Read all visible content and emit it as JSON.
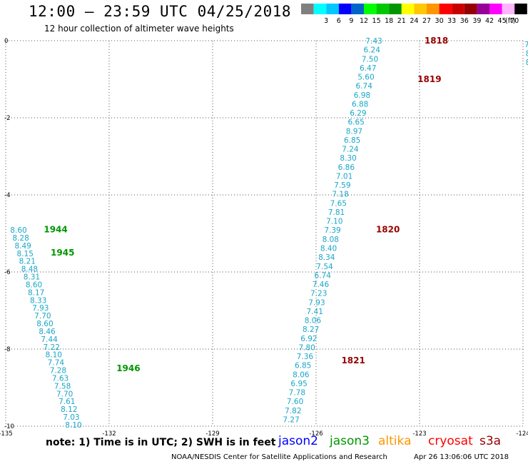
{
  "header": {
    "title": "12:00 – 23:59 UTC 04/25/2018",
    "subtitle": "12 hour collection of altimeter wave heights"
  },
  "legend": {
    "unit": "(ft)",
    "bins": [
      {
        "label": "",
        "color": "#808080"
      },
      {
        "label": "3",
        "color": "#00ffff"
      },
      {
        "label": "6",
        "color": "#00c8ff"
      },
      {
        "label": "9",
        "color": "#0000ff"
      },
      {
        "label": "12",
        "color": "#0064c8"
      },
      {
        "label": "15",
        "color": "#00ff00"
      },
      {
        "label": "18",
        "color": "#00c800"
      },
      {
        "label": "21",
        "color": "#009600"
      },
      {
        "label": "24",
        "color": "#ffff00"
      },
      {
        "label": "27",
        "color": "#ffc800"
      },
      {
        "label": "30",
        "color": "#ff9600"
      },
      {
        "label": "33",
        "color": "#ff0000"
      },
      {
        "label": "36",
        "color": "#c80000"
      },
      {
        "label": "39",
        "color": "#960000"
      },
      {
        "label": "42",
        "color": "#960096"
      },
      {
        "label": "45",
        "color": "#ff00ff"
      },
      {
        "label": "70",
        "color": "#ffb4ff"
      },
      {
        "label": "",
        "color": "#000000"
      }
    ]
  },
  "footer": {
    "note": "note: 1) Time is in UTC; 2) SWH is in feet",
    "satellites": [
      {
        "name": "jason2",
        "color": "#0000ff"
      },
      {
        "name": "jason3",
        "color": "#009600"
      },
      {
        "name": "altika",
        "color": "#ff9600"
      },
      {
        "name": "cryosat",
        "color": "#ff0000"
      },
      {
        "name": "s3a",
        "color": "#960000"
      }
    ],
    "credit": "NOAA/NESDIS Center for Satellite Applications and Research",
    "timestamp": "Apr 26 13:06:06 UTC 2018"
  },
  "chart_data": {
    "type": "scatter",
    "xlim": [
      -135,
      -124
    ],
    "ylim": [
      -10,
      0
    ],
    "xticks": [
      "-135",
      "-132",
      "-129",
      "-126",
      "-123",
      "-124"
    ],
    "yticks": [
      "0",
      "-2",
      "-4",
      "-6",
      "-8",
      "-10"
    ],
    "grid": true,
    "value_color": "#19a6c8",
    "track_a": {
      "values": [
        "7.43",
        "6.24",
        "7.50",
        "6.47",
        "5.60",
        "6.74",
        "6.98",
        "6.88",
        "6.29",
        "6.65",
        "8.97",
        "6.85",
        "7.24",
        "8.30",
        "6.86",
        "7.01",
        "7.59",
        "7.18",
        "7.65",
        "7.81",
        "7.10",
        "7.39",
        "8.08",
        "8.40",
        "8.34",
        "7.54",
        "6.74",
        "7.46",
        "7.23",
        "7.93",
        "7.41",
        "8.06",
        "8.27",
        "6.92",
        "7.80",
        "7.36",
        "6.85",
        "8.06",
        "6.95",
        "7.78",
        "7.60",
        "7.82",
        "7.27"
      ],
      "time_labels": [
        {
          "text": "1818",
          "lon": -122.9,
          "lat": 0.0,
          "color": "#960000"
        },
        {
          "text": "1819",
          "lon": -123.1,
          "lat": -1.0,
          "color": "#960000"
        },
        {
          "text": "1820",
          "lon": -124.3,
          "lat": -4.9,
          "color": "#960000"
        },
        {
          "text": "1821",
          "lon": -125.3,
          "lat": -8.3,
          "color": "#960000"
        }
      ]
    },
    "track_b": {
      "values": [
        "8.60",
        "8.28",
        "8.49",
        "8.15",
        "8.21",
        "8.48",
        "8.31",
        "8.60",
        "8.17",
        "8.33",
        "7.93",
        "7.70",
        "8.60",
        "8.46",
        "7.44",
        "7.22",
        "8.10",
        "7.74",
        "7.28",
        "7.63",
        "7.58",
        "7.70",
        "7.61",
        "8.12",
        "7.03",
        "8.10"
      ],
      "time_labels": [
        {
          "text": "1944",
          "lon": -133.9,
          "lat": -4.9,
          "color": "#009600"
        },
        {
          "text": "1945",
          "lon": -133.7,
          "lat": -5.5,
          "color": "#009600"
        },
        {
          "text": "1946",
          "lon": -131.8,
          "lat": -8.5,
          "color": "#009600"
        }
      ]
    },
    "track_c": {
      "values": [
        "7.",
        "8",
        "8"
      ]
    }
  }
}
